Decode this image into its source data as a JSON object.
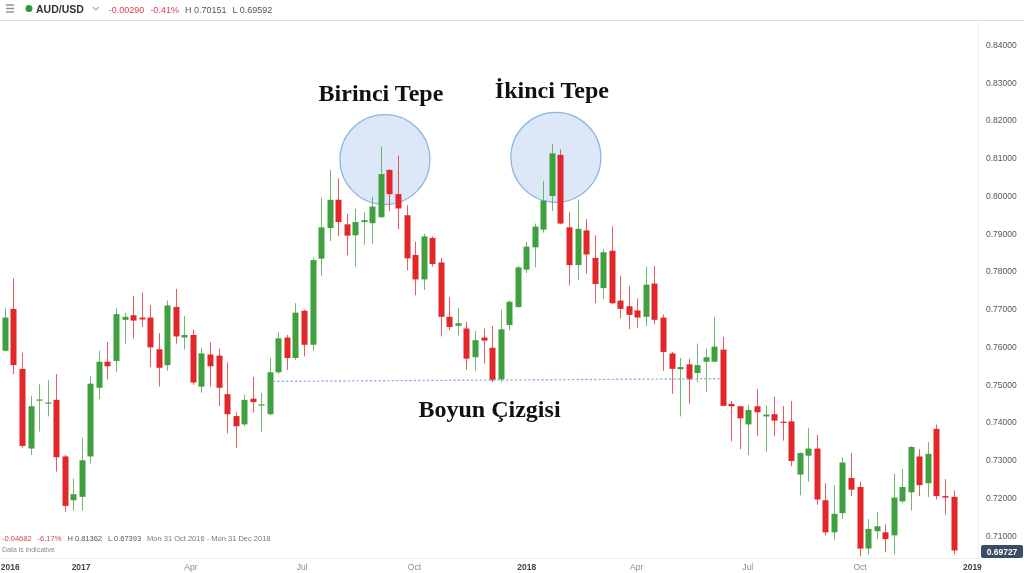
{
  "chart_data": {
    "type": "candlestick",
    "title": "AUD/USD",
    "x": [
      "2016-10-31",
      "2016-11-07",
      "2016-11-14",
      "2016-11-21",
      "2016-11-28",
      "2016-12-05",
      "2016-12-12",
      "2016-12-19",
      "2016-12-26",
      "2017-01-02",
      "2017-01-09",
      "2017-01-16",
      "2017-01-23",
      "2017-01-30",
      "2017-02-06",
      "2017-02-13",
      "2017-02-20",
      "2017-02-27",
      "2017-03-06",
      "2017-03-13",
      "2017-03-20",
      "2017-03-27",
      "2017-04-03",
      "2017-04-10",
      "2017-04-17",
      "2017-04-24",
      "2017-05-01",
      "2017-05-08",
      "2017-05-15",
      "2017-05-22",
      "2017-05-29",
      "2017-06-05",
      "2017-06-12",
      "2017-06-19",
      "2017-06-26",
      "2017-07-03",
      "2017-07-10",
      "2017-07-17",
      "2017-07-24",
      "2017-07-31",
      "2017-08-07",
      "2017-08-14",
      "2017-08-21",
      "2017-08-28",
      "2017-09-04",
      "2017-09-11",
      "2017-09-18",
      "2017-09-25",
      "2017-10-02",
      "2017-10-09",
      "2017-10-16",
      "2017-10-23",
      "2017-10-30",
      "2017-11-06",
      "2017-11-13",
      "2017-11-20",
      "2017-11-27",
      "2017-12-04",
      "2017-12-11",
      "2017-12-18",
      "2017-12-25",
      "2018-01-01",
      "2018-01-08",
      "2018-01-15",
      "2018-01-22",
      "2018-01-29",
      "2018-02-05",
      "2018-02-12",
      "2018-02-19",
      "2018-02-26",
      "2018-03-05",
      "2018-03-12",
      "2018-03-19",
      "2018-03-26",
      "2018-04-02",
      "2018-04-09",
      "2018-04-16",
      "2018-04-23",
      "2018-04-30",
      "2018-05-07",
      "2018-05-14",
      "2018-05-21",
      "2018-05-28",
      "2018-06-04",
      "2018-06-11",
      "2018-06-18",
      "2018-06-25",
      "2018-07-02",
      "2018-07-09",
      "2018-07-16",
      "2018-07-23",
      "2018-07-30",
      "2018-08-06",
      "2018-08-13",
      "2018-08-20",
      "2018-08-27",
      "2018-09-03",
      "2018-09-10",
      "2018-09-17",
      "2018-09-24",
      "2018-10-01",
      "2018-10-08",
      "2018-10-15",
      "2018-10-22",
      "2018-10-29",
      "2018-11-05",
      "2018-11-12",
      "2018-11-19",
      "2018-11-26",
      "2018-12-03",
      "2018-12-10",
      "2018-12-17"
    ],
    "xlim": [
      "2016-10-27",
      "2019-01-06"
    ],
    "xticks": [
      {
        "value": "2016-11-04",
        "label": "2016"
      },
      {
        "value": "2017-01-01",
        "label": "2017"
      },
      {
        "value": "2017-04-01",
        "label": "Apr"
      },
      {
        "value": "2017-07-01",
        "label": "Jul"
      },
      {
        "value": "2017-10-01",
        "label": "Oct"
      },
      {
        "value": "2018-01-01",
        "label": "2018"
      },
      {
        "value": "2018-04-01",
        "label": "Apr"
      },
      {
        "value": "2018-07-01",
        "label": "Jul"
      },
      {
        "value": "2018-10-01",
        "label": "Oct"
      },
      {
        "value": "2019-01-01",
        "label": "2019"
      }
    ],
    "ylim": [
      0.704,
      0.846
    ],
    "yticks": [
      {
        "value": 0.71,
        "label": "0.71000"
      },
      {
        "value": 0.72,
        "label": "0.72000"
      },
      {
        "value": 0.73,
        "label": "0.73000"
      },
      {
        "value": 0.74,
        "label": "0.74000"
      },
      {
        "value": 0.75,
        "label": "0.75000"
      },
      {
        "value": 0.76,
        "label": "0.76000"
      },
      {
        "value": 0.77,
        "label": "0.77000"
      },
      {
        "value": 0.78,
        "label": "0.78000"
      },
      {
        "value": 0.79,
        "label": "0.79000"
      },
      {
        "value": 0.8,
        "label": "0.80000"
      },
      {
        "value": 0.81,
        "label": "0.81000"
      },
      {
        "value": 0.82,
        "label": "0.82000"
      },
      {
        "value": 0.83,
        "label": "0.83000"
      },
      {
        "value": 0.84,
        "label": "0.84000"
      }
    ],
    "series": [
      {
        "ohlc": [
          [
            0.7589,
            0.7701,
            0.7587,
            0.7677
          ],
          [
            0.77,
            0.7781,
            0.7527,
            0.7551
          ],
          [
            0.7541,
            0.7584,
            0.7332,
            0.7337
          ],
          [
            0.733,
            0.747,
            0.7313,
            0.7442
          ],
          [
            0.7457,
            0.75,
            0.7375,
            0.746
          ],
          [
            0.7449,
            0.7511,
            0.7415,
            0.7452
          ],
          [
            0.7459,
            0.7527,
            0.7269,
            0.7307
          ],
          [
            0.7309,
            0.7313,
            0.7162,
            0.7178
          ],
          [
            0.7193,
            0.725,
            0.7166,
            0.7209
          ],
          [
            0.7202,
            0.7358,
            0.7166,
            0.7299
          ],
          [
            0.7309,
            0.7522,
            0.729,
            0.7502
          ],
          [
            0.7491,
            0.7589,
            0.7461,
            0.756
          ],
          [
            0.756,
            0.7612,
            0.7513,
            0.7548
          ],
          [
            0.7562,
            0.7702,
            0.7532,
            0.7686
          ],
          [
            0.7671,
            0.769,
            0.7608,
            0.7679
          ],
          [
            0.7683,
            0.7734,
            0.7622,
            0.7669
          ],
          [
            0.7677,
            0.7743,
            0.7652,
            0.7672
          ],
          [
            0.7677,
            0.771,
            0.7546,
            0.7598
          ],
          [
            0.7593,
            0.7636,
            0.7494,
            0.7544
          ],
          [
            0.7551,
            0.7722,
            0.7536,
            0.7709
          ],
          [
            0.7705,
            0.7753,
            0.7608,
            0.7627
          ],
          [
            0.7624,
            0.7681,
            0.7592,
            0.7631
          ],
          [
            0.7631,
            0.7645,
            0.7499,
            0.7505
          ],
          [
            0.7494,
            0.7597,
            0.7478,
            0.7582
          ],
          [
            0.7579,
            0.7612,
            0.7494,
            0.7548
          ],
          [
            0.7576,
            0.7595,
            0.7442,
            0.7491
          ],
          [
            0.7474,
            0.7558,
            0.737,
            0.7421
          ],
          [
            0.7416,
            0.7426,
            0.7332,
            0.7389
          ],
          [
            0.7394,
            0.7472,
            0.7389,
            0.7459
          ],
          [
            0.7462,
            0.752,
            0.7425,
            0.7453
          ],
          [
            0.7445,
            0.7478,
            0.7375,
            0.7447
          ],
          [
            0.7421,
            0.757,
            0.7418,
            0.7532
          ],
          [
            0.7532,
            0.7639,
            0.7527,
            0.7622
          ],
          [
            0.7624,
            0.7631,
            0.7538,
            0.757
          ],
          [
            0.757,
            0.7715,
            0.7565,
            0.769
          ],
          [
            0.7695,
            0.7698,
            0.7574,
            0.7605
          ],
          [
            0.7605,
            0.7835,
            0.7589,
            0.7829
          ],
          [
            0.7833,
            0.7994,
            0.7788,
            0.7916
          ],
          [
            0.7914,
            0.8068,
            0.788,
            0.7989
          ],
          [
            0.7989,
            0.8046,
            0.7892,
            0.793
          ],
          [
            0.7924,
            0.7952,
            0.7842,
            0.7894
          ],
          [
            0.7895,
            0.7965,
            0.7812,
            0.793
          ],
          [
            0.793,
            0.7956,
            0.787,
            0.7935
          ],
          [
            0.7927,
            0.7997,
            0.7873,
            0.7971
          ],
          [
            0.7943,
            0.813,
            0.7941,
            0.8057
          ],
          [
            0.8068,
            0.807,
            0.7959,
            0.8004
          ],
          [
            0.8004,
            0.8106,
            0.7911,
            0.7966
          ],
          [
            0.7948,
            0.7975,
            0.7802,
            0.7834
          ],
          [
            0.7843,
            0.7878,
            0.7736,
            0.7778
          ],
          [
            0.7778,
            0.7899,
            0.775,
            0.7892
          ],
          [
            0.7888,
            0.7892,
            0.7812,
            0.7819
          ],
          [
            0.7823,
            0.7835,
            0.7627,
            0.7679
          ],
          [
            0.7679,
            0.7731,
            0.7643,
            0.7652
          ],
          [
            0.7655,
            0.7703,
            0.7629,
            0.7662
          ],
          [
            0.7648,
            0.7666,
            0.7538,
            0.7568
          ],
          [
            0.7572,
            0.7641,
            0.7536,
            0.7617
          ],
          [
            0.7624,
            0.7648,
            0.7555,
            0.7616
          ],
          [
            0.7597,
            0.7655,
            0.7506,
            0.7511
          ],
          [
            0.7513,
            0.7698,
            0.7506,
            0.7646
          ],
          [
            0.7657,
            0.7722,
            0.7643,
            0.7719
          ],
          [
            0.7705,
            0.7814,
            0.7703,
            0.781
          ],
          [
            0.7804,
            0.7878,
            0.7795,
            0.7865
          ],
          [
            0.7863,
            0.7926,
            0.781,
            0.7918
          ],
          [
            0.791,
            0.8039,
            0.7902,
            0.7987
          ],
          [
            0.7999,
            0.8136,
            0.7959,
            0.8112
          ],
          [
            0.8108,
            0.8122,
            0.7924,
            0.7926
          ],
          [
            0.7916,
            0.7956,
            0.7762,
            0.7816
          ],
          [
            0.7816,
            0.799,
            0.7776,
            0.7912
          ],
          [
            0.7908,
            0.7938,
            0.7793,
            0.7844
          ],
          [
            0.7835,
            0.7895,
            0.7715,
            0.7766
          ],
          [
            0.7755,
            0.7859,
            0.7726,
            0.785
          ],
          [
            0.7854,
            0.7918,
            0.7712,
            0.7715
          ],
          [
            0.7722,
            0.7788,
            0.7674,
            0.77
          ],
          [
            0.7707,
            0.7761,
            0.7646,
            0.7684
          ],
          [
            0.7696,
            0.7728,
            0.765,
            0.7677
          ],
          [
            0.7679,
            0.7812,
            0.7655,
            0.7764
          ],
          [
            0.7767,
            0.7814,
            0.766,
            0.7671
          ],
          [
            0.7677,
            0.7685,
            0.7536,
            0.7586
          ],
          [
            0.7582,
            0.7586,
            0.7475,
            0.7541
          ],
          [
            0.754,
            0.757,
            0.7415,
            0.7546
          ],
          [
            0.7553,
            0.7568,
            0.7449,
            0.7513
          ],
          [
            0.753,
            0.7608,
            0.7506,
            0.7551
          ],
          [
            0.756,
            0.7595,
            0.748,
            0.7572
          ],
          [
            0.756,
            0.7679,
            0.756,
            0.76
          ],
          [
            0.7592,
            0.7626,
            0.7443,
            0.7443
          ],
          [
            0.7448,
            0.7456,
            0.7349,
            0.7442
          ],
          [
            0.7442,
            0.7443,
            0.7328,
            0.741
          ],
          [
            0.7394,
            0.7446,
            0.7313,
            0.7432
          ],
          [
            0.7442,
            0.7487,
            0.7363,
            0.7426
          ],
          [
            0.7415,
            0.7444,
            0.7321,
            0.742
          ],
          [
            0.7421,
            0.7467,
            0.7363,
            0.7404
          ],
          [
            0.7401,
            0.7443,
            0.7351,
            0.7399
          ],
          [
            0.7402,
            0.7456,
            0.7283,
            0.7297
          ],
          [
            0.7261,
            0.732,
            0.7206,
            0.7318
          ],
          [
            0.7311,
            0.7385,
            0.7242,
            0.733
          ],
          [
            0.733,
            0.7366,
            0.7181,
            0.7195
          ],
          [
            0.7193,
            0.7238,
            0.71,
            0.7108
          ],
          [
            0.7108,
            0.7233,
            0.7089,
            0.7157
          ],
          [
            0.7159,
            0.7307,
            0.7143,
            0.7293
          ],
          [
            0.7252,
            0.7318,
            0.7204,
            0.7221
          ],
          [
            0.7228,
            0.7242,
            0.7045,
            0.7065
          ],
          [
            0.7065,
            0.7143,
            0.705,
            0.7117
          ],
          [
            0.7111,
            0.7162,
            0.709,
            0.7124
          ],
          [
            0.7108,
            0.713,
            0.7055,
            0.709
          ],
          [
            0.71,
            0.7263,
            0.705,
            0.72
          ],
          [
            0.719,
            0.7276,
            0.7185,
            0.7228
          ],
          [
            0.7214,
            0.7337,
            0.7166,
            0.7334
          ],
          [
            0.7309,
            0.7328,
            0.7204,
            0.7233
          ],
          [
            0.7238,
            0.7347,
            0.7201,
            0.7316
          ],
          [
            0.7382,
            0.7394,
            0.7195,
            0.7204
          ],
          [
            0.7204,
            0.7249,
            0.7155,
            0.72
          ],
          [
            0.7202,
            0.7219,
            0.705,
            0.706
          ]
        ],
        "colors": [
          "#40a040",
          "#e3262a",
          "#e3262a",
          "#40a040",
          "#40a040",
          "#40a040",
          "#e3262a",
          "#e3262a",
          "#40a040",
          "#40a040",
          "#40a040",
          "#40a040",
          "#e3262a",
          "#40a040",
          "#40a040",
          "#e3262a",
          "#e3262a",
          "#e3262a",
          "#e3262a",
          "#40a040",
          "#e3262a",
          "#40a040",
          "#e3262a",
          "#40a040",
          "#e3262a",
          "#e3262a",
          "#e3262a",
          "#e3262a",
          "#40a040",
          "#e3262a",
          "#40a040",
          "#40a040",
          "#40a040",
          "#e3262a",
          "#40a040",
          "#e3262a",
          "#40a040",
          "#40a040",
          "#40a040",
          "#e3262a",
          "#e3262a",
          "#40a040",
          "#40a040",
          "#40a040",
          "#40a040",
          "#e3262a",
          "#e3262a",
          "#e3262a",
          "#e3262a",
          "#40a040",
          "#e3262a",
          "#e3262a",
          "#e3262a",
          "#40a040",
          "#e3262a",
          "#40a040",
          "#e3262a",
          "#e3262a",
          "#40a040",
          "#40a040",
          "#40a040",
          "#40a040",
          "#40a040",
          "#40a040",
          "#40a040",
          "#e3262a",
          "#e3262a",
          "#40a040",
          "#e3262a",
          "#e3262a",
          "#40a040",
          "#e3262a",
          "#e3262a",
          "#e3262a",
          "#e3262a",
          "#40a040",
          "#e3262a",
          "#e3262a",
          "#e3262a",
          "#40a040",
          "#e3262a",
          "#40a040",
          "#40a040",
          "#40a040",
          "#e3262a",
          "#e3262a",
          "#e3262a",
          "#40a040",
          "#e3262a",
          "#40a040",
          "#e3262a",
          "#e3262a",
          "#e3262a",
          "#40a040",
          "#40a040",
          "#e3262a",
          "#e3262a",
          "#40a040",
          "#40a040",
          "#e3262a",
          "#e3262a",
          "#40a040",
          "#40a040",
          "#e3262a",
          "#40a040",
          "#40a040",
          "#40a040",
          "#e3262a",
          "#40a040",
          "#e3262a",
          "#e3262a",
          "#e3262a"
        ]
      },
      {
        "type": "line",
        "name": "Boyun Çizgisi",
        "color": "#8fb4e3",
        "line_style": "dotted",
        "x": [
          "2017-06-08",
          "2018-06-10"
        ],
        "values": [
          0.7508,
          0.7515
        ]
      }
    ],
    "annotations": [
      "-0.00290",
      "-0.41%",
      "H 0.70151",
      "L 0.69592",
      "-0.04682",
      "-6.17%",
      "H 0.81362",
      "L 0.67393",
      "Mon 31 Oct 2016 - Mon 31 Dec 2018",
      "Data is indicative",
      "0.69727",
      {
        "text": "Birinci Tepe",
        "x": "2017-09-04",
        "y": 0.813
      },
      {
        "text": "İkinci Tepe",
        "x": "2018-01-22",
        "y": 0.8136
      }
    ]
  }
}
